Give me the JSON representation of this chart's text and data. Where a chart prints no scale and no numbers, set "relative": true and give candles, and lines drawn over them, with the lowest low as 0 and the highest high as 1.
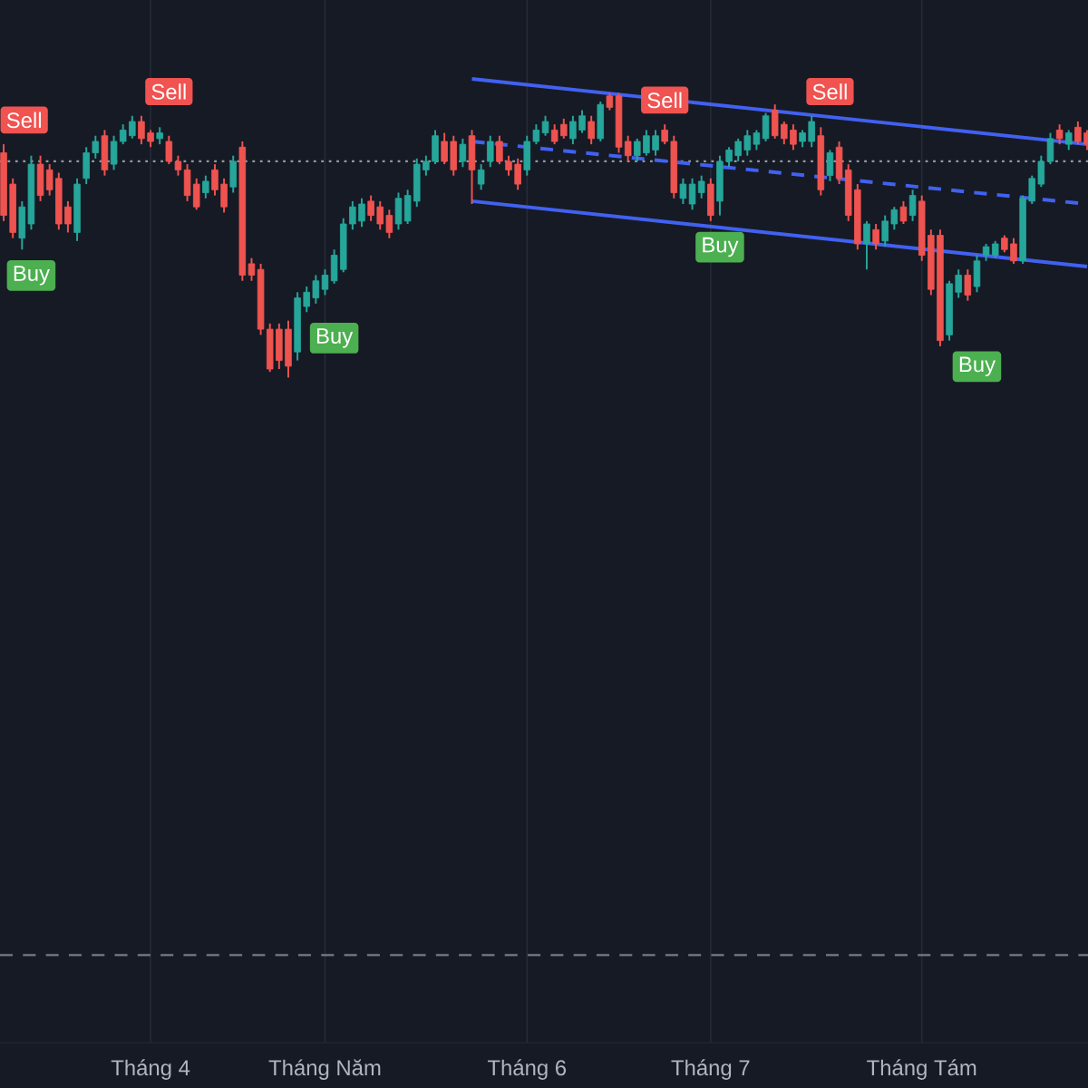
{
  "chart_data": {
    "type": "candlestick",
    "relative": true,
    "grid": "x",
    "categories": [
      null,
      null,
      null,
      null,
      null,
      null,
      null,
      null,
      null,
      null,
      null,
      null,
      null,
      null,
      null,
      null,
      "Tháng 4",
      null,
      null,
      null,
      null,
      null,
      null,
      null,
      null,
      null,
      null,
      null,
      null,
      null,
      null,
      null,
      null,
      null,
      null,
      "Tháng Năm",
      null,
      null,
      null,
      null,
      null,
      null,
      null,
      null,
      null,
      null,
      null,
      null,
      null,
      null,
      null,
      null,
      null,
      null,
      null,
      null,
      null,
      "Tháng 6",
      null,
      null,
      null,
      null,
      null,
      null,
      null,
      null,
      null,
      null,
      null,
      null,
      null,
      null,
      null,
      null,
      null,
      null,
      null,
      "Tháng 7",
      null,
      null,
      null,
      null,
      null,
      null,
      null,
      null,
      null,
      null,
      null,
      null,
      null,
      null,
      null,
      null,
      null,
      null,
      null,
      null,
      null,
      null,
      "Tháng Tám",
      null,
      null,
      null,
      null,
      null,
      null,
      null,
      null,
      null,
      null,
      null,
      null,
      null,
      null,
      null,
      null,
      null,
      null
    ],
    "ohlc": [
      [
        0.79,
        0.82,
        0.55,
        0.57
      ],
      [
        0.68,
        0.7,
        0.49,
        0.51
      ],
      [
        0.49,
        0.62,
        0.45,
        0.6
      ],
      [
        0.54,
        0.78,
        0.52,
        0.75
      ],
      [
        0.75,
        0.78,
        0.62,
        0.64
      ],
      [
        0.73,
        0.75,
        0.64,
        0.66
      ],
      [
        0.7,
        0.72,
        0.52,
        0.54
      ],
      [
        0.6,
        0.62,
        0.51,
        0.54
      ],
      [
        0.51,
        0.7,
        0.48,
        0.68
      ],
      [
        0.7,
        0.81,
        0.68,
        0.79
      ],
      [
        0.79,
        0.85,
        0.77,
        0.83
      ],
      [
        0.85,
        0.87,
        0.71,
        0.73
      ],
      [
        0.75,
        0.85,
        0.73,
        0.83
      ],
      [
        0.83,
        0.89,
        0.82,
        0.87
      ],
      [
        0.85,
        0.92,
        0.84,
        0.9
      ],
      [
        0.9,
        0.92,
        0.82,
        0.84
      ],
      [
        0.86,
        0.87,
        0.81,
        0.83
      ],
      [
        0.84,
        0.88,
        0.82,
        0.86
      ],
      [
        0.83,
        0.85,
        0.75,
        0.76
      ],
      [
        0.76,
        0.78,
        0.71,
        0.73
      ],
      [
        0.73,
        0.75,
        0.62,
        0.64
      ],
      [
        0.68,
        0.7,
        0.59,
        0.6
      ],
      [
        0.65,
        0.71,
        0.63,
        0.69
      ],
      [
        0.73,
        0.75,
        0.64,
        0.66
      ],
      [
        0.68,
        0.7,
        0.58,
        0.6
      ],
      [
        0.67,
        0.78,
        0.65,
        0.76
      ],
      [
        0.81,
        0.83,
        0.34,
        0.36
      ],
      [
        0.4,
        0.42,
        0.34,
        0.36
      ],
      [
        0.38,
        0.4,
        0.15,
        0.17
      ],
      [
        0.17,
        0.19,
        0.02,
        0.03
      ],
      [
        0.17,
        0.19,
        0.03,
        0.06
      ],
      [
        0.17,
        0.2,
        0,
        0.04
      ],
      [
        0.09,
        0.3,
        0.06,
        0.28
      ],
      [
        0.25,
        0.32,
        0.23,
        0.3
      ],
      [
        0.28,
        0.36,
        0.26,
        0.34
      ],
      [
        0.31,
        0.38,
        0.29,
        0.36
      ],
      [
        0.34,
        0.45,
        0.33,
        0.43
      ],
      [
        0.38,
        0.56,
        0.37,
        0.54
      ],
      [
        0.54,
        0.62,
        0.52,
        0.6
      ],
      [
        0.55,
        0.63,
        0.53,
        0.61
      ],
      [
        0.62,
        0.64,
        0.55,
        0.57
      ],
      [
        0.6,
        0.62,
        0.52,
        0.54
      ],
      [
        0.57,
        0.59,
        0.49,
        0.51
      ],
      [
        0.54,
        0.65,
        0.52,
        0.63
      ],
      [
        0.55,
        0.66,
        0.54,
        0.64
      ],
      [
        0.62,
        0.77,
        0.6,
        0.75
      ],
      [
        0.73,
        0.78,
        0.71,
        0.76
      ],
      [
        0.76,
        0.87,
        0.75,
        0.85
      ],
      [
        0.83,
        0.86,
        0.75,
        0.76
      ],
      [
        0.83,
        0.85,
        0.71,
        0.73
      ],
      [
        0.76,
        0.84,
        0.74,
        0.82
      ],
      [
        0.85,
        0.87,
        0.61,
        0.73
      ],
      [
        0.68,
        0.75,
        0.66,
        0.73
      ],
      [
        0.76,
        0.85,
        0.74,
        0.83
      ],
      [
        0.83,
        0.85,
        0.75,
        0.76
      ],
      [
        0.76,
        0.78,
        0.71,
        0.73
      ],
      [
        0.75,
        0.77,
        0.66,
        0.68
      ],
      [
        0.73,
        0.85,
        0.71,
        0.83
      ],
      [
        0.83,
        0.89,
        0.82,
        0.87
      ],
      [
        0.86,
        0.92,
        0.85,
        0.9
      ],
      [
        0.87,
        0.89,
        0.82,
        0.83
      ],
      [
        0.89,
        0.91,
        0.84,
        0.85
      ],
      [
        0.84,
        0.92,
        0.82,
        0.9
      ],
      [
        0.87,
        0.94,
        0.86,
        0.92
      ],
      [
        0.9,
        0.92,
        0.82,
        0.84
      ],
      [
        0.84,
        0.97,
        0.83,
        0.96
      ],
      [
        0.99,
        1,
        0.94,
        0.95
      ],
      [
        0.99,
        1,
        0.79,
        0.81
      ],
      [
        0.83,
        0.85,
        0.76,
        0.78
      ],
      [
        0.78,
        0.84,
        0.76,
        0.83
      ],
      [
        0.79,
        0.87,
        0.78,
        0.85
      ],
      [
        0.8,
        0.87,
        0.78,
        0.85
      ],
      [
        0.87,
        0.89,
        0.82,
        0.83
      ],
      [
        0.83,
        0.85,
        0.63,
        0.65
      ],
      [
        0.63,
        0.7,
        0.61,
        0.68
      ],
      [
        0.61,
        0.7,
        0.59,
        0.68
      ],
      [
        0.65,
        0.71,
        0.63,
        0.69
      ],
      [
        0.68,
        0.7,
        0.55,
        0.57
      ],
      [
        0.62,
        0.78,
        0.57,
        0.76
      ],
      [
        0.76,
        0.81,
        0.74,
        0.8
      ],
      [
        0.78,
        0.84,
        0.76,
        0.83
      ],
      [
        0.8,
        0.87,
        0.78,
        0.85
      ],
      [
        0.82,
        0.87,
        0.8,
        0.86
      ],
      [
        0.84,
        0.93,
        0.83,
        0.92
      ],
      [
        0.94,
        0.96,
        0.84,
        0.85
      ],
      [
        0.89,
        0.9,
        0.82,
        0.84
      ],
      [
        0.87,
        0.89,
        0.8,
        0.82
      ],
      [
        0.83,
        0.87,
        0.81,
        0.86
      ],
      [
        0.83,
        0.92,
        0.81,
        0.9
      ],
      [
        0.85,
        0.88,
        0.64,
        0.66
      ],
      [
        0.71,
        0.8,
        0.69,
        0.79
      ],
      [
        0.81,
        0.83,
        0.68,
        0.7
      ],
      [
        0.73,
        0.75,
        0.55,
        0.57
      ],
      [
        0.66,
        0.68,
        0.45,
        0.47
      ],
      [
        0.47,
        0.55,
        0.38,
        0.54
      ],
      [
        0.52,
        0.54,
        0.45,
        0.47
      ],
      [
        0.48,
        0.57,
        0.46,
        0.55
      ],
      [
        0.54,
        0.6,
        0.52,
        0.59
      ],
      [
        0.6,
        0.62,
        0.54,
        0.55
      ],
      [
        0.57,
        0.66,
        0.55,
        0.64
      ],
      [
        0.62,
        0.64,
        0.41,
        0.43
      ],
      [
        0.5,
        0.52,
        0.29,
        0.31
      ],
      [
        0.5,
        0.52,
        0.11,
        0.13
      ],
      [
        0.15,
        0.34,
        0.13,
        0.33
      ],
      [
        0.3,
        0.38,
        0.28,
        0.36
      ],
      [
        0.36,
        0.38,
        0.27,
        0.29
      ],
      [
        0.32,
        0.43,
        0.3,
        0.41
      ],
      [
        0.43,
        0.47,
        0.41,
        0.46
      ],
      [
        0.43,
        0.48,
        0.42,
        0.47
      ],
      [
        0.49,
        0.5,
        0.44,
        0.45
      ],
      [
        0.47,
        0.49,
        0.4,
        0.41
      ],
      [
        0.41,
        0.64,
        0.4,
        0.63
      ],
      [
        0.62,
        0.71,
        0.61,
        0.7
      ],
      [
        0.68,
        0.78,
        0.67,
        0.76
      ],
      [
        0.76,
        0.86,
        0.75,
        0.84
      ],
      [
        0.87,
        0.89,
        0.82,
        0.84
      ],
      [
        0.82,
        0.87,
        0.8,
        0.86
      ],
      [
        0.88,
        0.9,
        0.82,
        0.83
      ],
      [
        0.86,
        0.87,
        0.8,
        0.82
      ]
    ],
    "series": [
      {
        "type": "line",
        "color": "#4161f0",
        "line_style": "solid",
        "values": [
          null,
          null,
          null,
          null,
          null,
          null,
          null,
          null,
          null,
          null,
          null,
          null,
          null,
          null,
          null,
          null,
          null,
          null,
          null,
          null,
          null,
          null,
          null,
          null,
          null,
          null,
          null,
          null,
          null,
          null,
          null,
          null,
          null,
          null,
          null,
          null,
          null,
          null,
          null,
          null,
          null,
          null,
          null,
          null,
          null,
          null,
          null,
          null,
          null,
          null,
          null,
          1.05,
          null,
          null,
          null,
          null,
          null,
          null,
          null,
          null,
          null,
          null,
          null,
          null,
          null,
          null,
          null,
          null,
          null,
          null,
          null,
          null,
          null,
          null,
          null,
          null,
          null,
          null,
          null,
          null,
          null,
          null,
          null,
          null,
          null,
          null,
          null,
          null,
          null,
          null,
          null,
          null,
          null,
          null,
          null,
          null,
          null,
          null,
          null,
          null,
          null,
          null,
          null,
          null,
          null,
          null,
          null,
          null,
          null,
          null,
          null,
          null,
          null,
          null,
          null,
          null,
          null,
          null,
          0.82
        ]
      },
      {
        "type": "line",
        "color": "#4161f0",
        "line_style": "solid",
        "values": [
          null,
          null,
          null,
          null,
          null,
          null,
          null,
          null,
          null,
          null,
          null,
          null,
          null,
          null,
          null,
          null,
          null,
          null,
          null,
          null,
          null,
          null,
          null,
          null,
          null,
          null,
          null,
          null,
          null,
          null,
          null,
          null,
          null,
          null,
          null,
          null,
          null,
          null,
          null,
          null,
          null,
          null,
          null,
          null,
          null,
          null,
          null,
          null,
          null,
          null,
          null,
          0.62,
          null,
          null,
          null,
          null,
          null,
          null,
          null,
          null,
          null,
          null,
          null,
          null,
          null,
          null,
          null,
          null,
          null,
          null,
          null,
          null,
          null,
          null,
          null,
          null,
          null,
          null,
          null,
          null,
          null,
          null,
          null,
          null,
          null,
          null,
          null,
          null,
          null,
          null,
          null,
          null,
          null,
          null,
          null,
          null,
          null,
          null,
          null,
          null,
          null,
          null,
          null,
          null,
          null,
          null,
          null,
          null,
          null,
          null,
          null,
          null,
          null,
          null,
          null,
          null,
          null,
          null,
          0.39
        ]
      },
      {
        "type": "line",
        "color": "#4161f0",
        "line_style": "dashed",
        "values": [
          null,
          null,
          null,
          null,
          null,
          null,
          null,
          null,
          null,
          null,
          null,
          null,
          null,
          null,
          null,
          null,
          null,
          null,
          null,
          null,
          null,
          null,
          null,
          null,
          null,
          null,
          null,
          null,
          null,
          null,
          null,
          null,
          null,
          null,
          null,
          null,
          null,
          null,
          null,
          null,
          null,
          null,
          null,
          null,
          null,
          null,
          null,
          null,
          null,
          null,
          null,
          0.83,
          null,
          null,
          null,
          null,
          null,
          null,
          null,
          null,
          null,
          null,
          null,
          null,
          null,
          null,
          null,
          null,
          null,
          null,
          null,
          null,
          null,
          null,
          null,
          null,
          null,
          null,
          null,
          null,
          null,
          null,
          null,
          null,
          null,
          null,
          null,
          null,
          null,
          null,
          null,
          null,
          null,
          null,
          null,
          null,
          null,
          null,
          null,
          null,
          null,
          null,
          null,
          null,
          null,
          null,
          null,
          null,
          null,
          null,
          null,
          null,
          null,
          null,
          null,
          null,
          null,
          null,
          0.61
        ]
      }
    ],
    "ref_lines": [
      {
        "axis": "y",
        "value": 0.76,
        "color": "#9598a1",
        "line_style": "dotted"
      },
      {
        "axis": "y",
        "value": -2.03,
        "color": "#787b86",
        "line_style": "dashed"
      }
    ],
    "annotations": [
      "Sell",
      "Sell",
      "Sell",
      "Sell",
      "Buy",
      "Buy",
      "Buy",
      "Buy"
    ]
  }
}
